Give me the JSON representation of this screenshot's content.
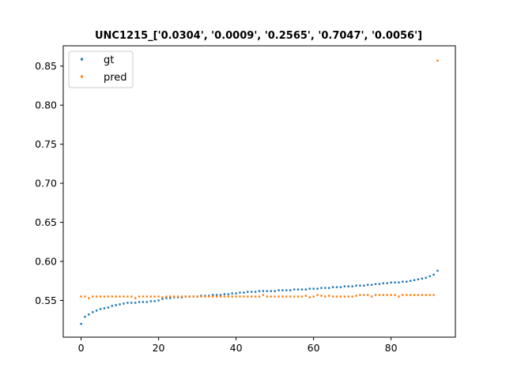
{
  "chart_data": {
    "type": "scatter",
    "title": "UNC1215_['0.0304', '0.0009', '0.2565', '0.7047', '0.0056']",
    "xlabel": "",
    "ylabel": "",
    "xlim": [
      -4.6,
      96.6
    ],
    "ylim": [
      0.503,
      0.876
    ],
    "xticks": [
      0,
      20,
      40,
      60,
      80
    ],
    "yticks": [
      0.55,
      0.6,
      0.65,
      0.7,
      0.75,
      0.8,
      0.85
    ],
    "ytick_labels": [
      "0.55",
      "0.60",
      "0.65",
      "0.70",
      "0.75",
      "0.80",
      "0.85"
    ],
    "grid": false,
    "legend_position": "upper-left",
    "series": [
      {
        "name": "gt",
        "color": "#1f77b4",
        "x": [
          0,
          1,
          2,
          3,
          4,
          5,
          6,
          7,
          8,
          9,
          10,
          11,
          12,
          13,
          14,
          15,
          16,
          17,
          18,
          19,
          20,
          21,
          22,
          23,
          24,
          25,
          26,
          27,
          28,
          29,
          30,
          31,
          32,
          33,
          34,
          35,
          36,
          37,
          38,
          39,
          40,
          41,
          42,
          43,
          44,
          45,
          46,
          47,
          48,
          49,
          50,
          51,
          52,
          53,
          54,
          55,
          56,
          57,
          58,
          59,
          60,
          61,
          62,
          63,
          64,
          65,
          66,
          67,
          68,
          69,
          70,
          71,
          72,
          73,
          74,
          75,
          76,
          77,
          78,
          79,
          80,
          81,
          82,
          83,
          84,
          85,
          86,
          87,
          88,
          89,
          90,
          91,
          92
        ],
        "y": [
          0.52,
          0.529,
          0.532,
          0.535,
          0.537,
          0.539,
          0.54,
          0.541,
          0.543,
          0.544,
          0.545,
          0.546,
          0.547,
          0.547,
          0.547,
          0.548,
          0.548,
          0.548,
          0.549,
          0.549,
          0.55,
          0.552,
          0.553,
          0.553,
          0.554,
          0.554,
          0.554,
          0.555,
          0.555,
          0.555,
          0.555,
          0.556,
          0.556,
          0.556,
          0.557,
          0.557,
          0.557,
          0.558,
          0.558,
          0.559,
          0.559,
          0.56,
          0.56,
          0.561,
          0.561,
          0.561,
          0.562,
          0.562,
          0.562,
          0.562,
          0.562,
          0.563,
          0.563,
          0.563,
          0.563,
          0.564,
          0.564,
          0.564,
          0.564,
          0.565,
          0.565,
          0.565,
          0.566,
          0.566,
          0.566,
          0.567,
          0.567,
          0.567,
          0.568,
          0.568,
          0.568,
          0.569,
          0.569,
          0.569,
          0.57,
          0.57,
          0.571,
          0.571,
          0.572,
          0.572,
          0.573,
          0.573,
          0.573,
          0.574,
          0.574,
          0.575,
          0.576,
          0.577,
          0.578,
          0.579,
          0.581,
          0.583,
          0.588
        ]
      },
      {
        "name": "pred",
        "color": "#ff7f0e",
        "x": [
          0,
          1,
          2,
          3,
          4,
          5,
          6,
          7,
          8,
          9,
          10,
          11,
          12,
          13,
          14,
          15,
          16,
          17,
          18,
          19,
          20,
          21,
          22,
          23,
          24,
          25,
          26,
          27,
          28,
          29,
          30,
          31,
          32,
          33,
          34,
          35,
          36,
          37,
          38,
          39,
          40,
          41,
          42,
          43,
          44,
          45,
          46,
          47,
          48,
          49,
          50,
          51,
          52,
          53,
          54,
          55,
          56,
          57,
          58,
          59,
          60,
          61,
          62,
          63,
          64,
          65,
          66,
          67,
          68,
          69,
          70,
          71,
          72,
          73,
          74,
          75,
          76,
          77,
          78,
          79,
          80,
          81,
          82,
          83,
          84,
          85,
          86,
          87,
          88,
          89,
          90,
          91,
          92
        ],
        "y": [
          0.555,
          0.555,
          0.553,
          0.555,
          0.555,
          0.555,
          0.555,
          0.555,
          0.555,
          0.555,
          0.555,
          0.555,
          0.555,
          0.555,
          0.553,
          0.555,
          0.555,
          0.555,
          0.555,
          0.555,
          0.555,
          0.554,
          0.555,
          0.555,
          0.555,
          0.555,
          0.555,
          0.555,
          0.555,
          0.555,
          0.555,
          0.555,
          0.555,
          0.555,
          0.555,
          0.555,
          0.555,
          0.555,
          0.555,
          0.555,
          0.555,
          0.555,
          0.555,
          0.555,
          0.555,
          0.555,
          0.555,
          0.557,
          0.555,
          0.555,
          0.555,
          0.555,
          0.555,
          0.555,
          0.555,
          0.555,
          0.555,
          0.555,
          0.556,
          0.554,
          0.555,
          0.557,
          0.556,
          0.555,
          0.556,
          0.555,
          0.555,
          0.555,
          0.555,
          0.555,
          0.555,
          0.556,
          0.557,
          0.557,
          0.557,
          0.555,
          0.557,
          0.557,
          0.557,
          0.557,
          0.557,
          0.557,
          0.555,
          0.557,
          0.557,
          0.557,
          0.557,
          0.557,
          0.557,
          0.557,
          0.557,
          0.557,
          0.857
        ]
      }
    ]
  }
}
